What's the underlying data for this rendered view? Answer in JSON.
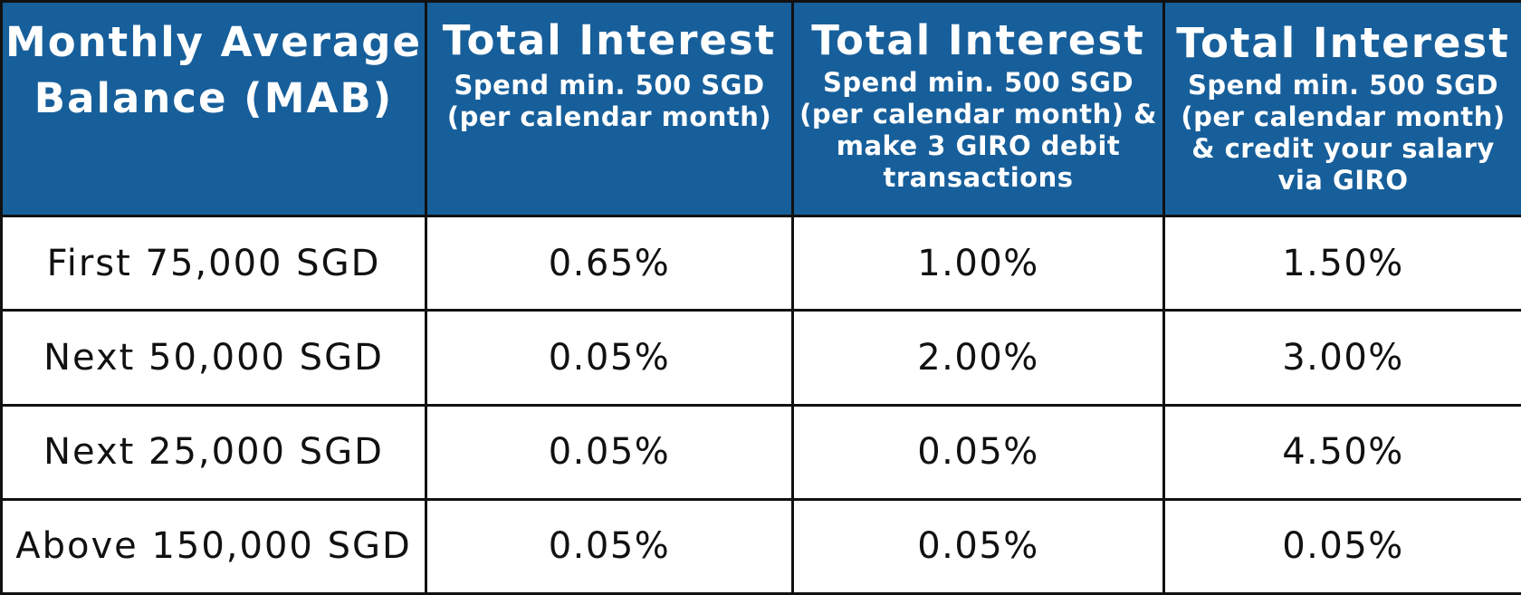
{
  "table": {
    "header": {
      "mab": "Monthly Average Balance (MAB)",
      "col1_title": "Total Interest",
      "col1_sub": "Spend min. 500 SGD (per calendar month)",
      "col2_title": "Total Interest",
      "col2_sub": "Spend min. 500 SGD (per calendar month) & make 3 GIRO debit transactions",
      "col3_title": "Total Interest",
      "col3_sub": "Spend min. 500 SGD (per calendar month) & credit your salary via GIRO"
    },
    "rows": [
      {
        "tier": "First 75,000 SGD",
        "rate1": "0.65%",
        "rate2": "1.00%",
        "rate3": "1.50%"
      },
      {
        "tier": "Next 50,000 SGD",
        "rate1": "0.05%",
        "rate2": "2.00%",
        "rate3": "3.00%"
      },
      {
        "tier": "Next 25,000 SGD",
        "rate1": "0.05%",
        "rate2": "0.05%",
        "rate3": "4.50%"
      },
      {
        "tier": "Above 150,000 SGD",
        "rate1": "0.05%",
        "rate2": "0.05%",
        "rate3": "0.05%"
      }
    ]
  },
  "colors": {
    "header_background": "#175f9b",
    "header_text": "#ffffff",
    "body_text": "#111111",
    "grid_lines": "#111111"
  }
}
